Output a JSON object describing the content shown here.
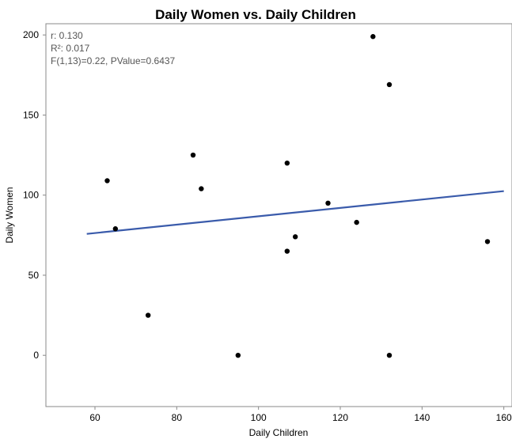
{
  "chart_data": {
    "type": "scatter",
    "title": "Daily Women vs. Daily Children",
    "xlabel": "Daily Children",
    "ylabel": "Daily Women",
    "xlim": [
      48,
      162
    ],
    "ylim": [
      -32,
      207
    ],
    "x_ticks": [
      60,
      80,
      100,
      120,
      140,
      160
    ],
    "y_ticks": [
      0,
      50,
      100,
      150,
      200
    ],
    "grid": false,
    "points": [
      {
        "x": 63,
        "y": 109
      },
      {
        "x": 65,
        "y": 79
      },
      {
        "x": 73,
        "y": 25
      },
      {
        "x": 84,
        "y": 125
      },
      {
        "x": 86,
        "y": 104
      },
      {
        "x": 95,
        "y": 0
      },
      {
        "x": 107,
        "y": 120
      },
      {
        "x": 107,
        "y": 65
      },
      {
        "x": 109,
        "y": 74
      },
      {
        "x": 117,
        "y": 95
      },
      {
        "x": 124,
        "y": 83
      },
      {
        "x": 128,
        "y": 199
      },
      {
        "x": 132,
        "y": 169
      },
      {
        "x": 132,
        "y": 0
      },
      {
        "x": 156,
        "y": 71
      }
    ],
    "fit_line": {
      "x": [
        58,
        160
      ],
      "y": [
        75.8,
        102.5
      ]
    },
    "colors": {
      "points": "#000000",
      "fit_line": "#3a5bab",
      "frame": "#888888",
      "stats_text": "#555555"
    },
    "stats": {
      "r": "r: 0.130",
      "r2": "R²: 0.017",
      "f": "F(1,13)=0.22, PValue=0.6437"
    }
  }
}
